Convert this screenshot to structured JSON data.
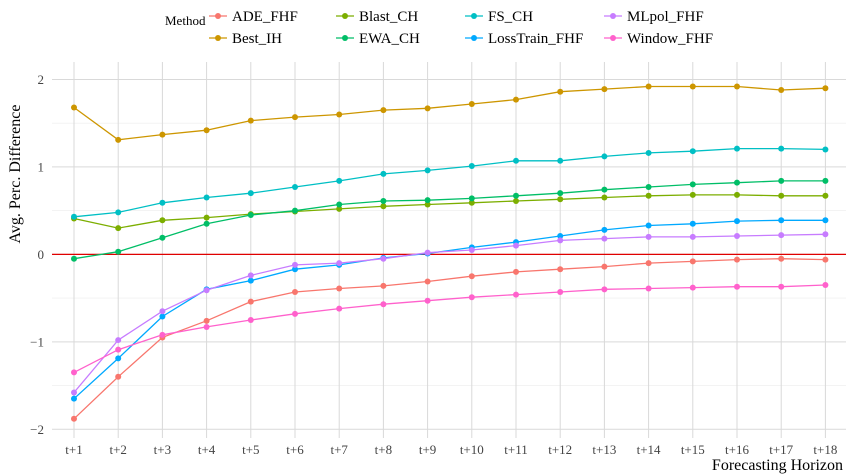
{
  "chart_data": {
    "type": "line",
    "xlabel": "Forecasting Horizon",
    "ylabel": "Avg. Perc. Difference",
    "ylim": [
      -2.1,
      2.2
    ],
    "yticks": [
      -2,
      -1,
      0,
      1,
      2
    ],
    "categories": [
      "t+1",
      "t+2",
      "t+3",
      "t+4",
      "t+5",
      "t+6",
      "t+7",
      "t+8",
      "t+9",
      "t+10",
      "t+11",
      "t+12",
      "t+13",
      "t+14",
      "t+15",
      "t+16",
      "t+17",
      "t+18"
    ],
    "reference_line": {
      "y": 0,
      "color": "#e00000"
    },
    "grid": true,
    "legend": {
      "title": "Method",
      "position": "top",
      "columns": [
        [
          "ADE_FHF",
          "Best_IH"
        ],
        [
          "Blast_CH",
          "EWA_CH"
        ],
        [
          "FS_CH",
          "LossTrain_FHF"
        ],
        [
          "MLpol_FHF",
          "Window_FHF"
        ]
      ]
    },
    "series": [
      {
        "name": "ADE_FHF",
        "color": "#F8766D",
        "values": [
          -1.88,
          -1.4,
          -0.95,
          -0.76,
          -0.54,
          -0.43,
          -0.39,
          -0.36,
          -0.31,
          -0.25,
          -0.2,
          -0.17,
          -0.14,
          -0.1,
          -0.08,
          -0.06,
          -0.05,
          -0.06
        ]
      },
      {
        "name": "Best_IH",
        "color": "#CD9600",
        "values": [
          1.68,
          1.31,
          1.37,
          1.42,
          1.53,
          1.57,
          1.6,
          1.65,
          1.67,
          1.72,
          1.77,
          1.86,
          1.89,
          1.92,
          1.92,
          1.92,
          1.88,
          1.9
        ]
      },
      {
        "name": "Blast_CH",
        "color": "#7CAE00",
        "values": [
          0.41,
          0.3,
          0.39,
          0.42,
          0.46,
          0.49,
          0.52,
          0.55,
          0.57,
          0.59,
          0.61,
          0.63,
          0.65,
          0.67,
          0.68,
          0.68,
          0.67,
          0.67
        ]
      },
      {
        "name": "EWA_CH",
        "color": "#00BE67",
        "values": [
          -0.05,
          0.03,
          0.19,
          0.35,
          0.45,
          0.5,
          0.57,
          0.61,
          0.62,
          0.64,
          0.67,
          0.7,
          0.74,
          0.77,
          0.8,
          0.82,
          0.84,
          0.84
        ]
      },
      {
        "name": "FS_CH",
        "color": "#00BFC4",
        "values": [
          0.43,
          0.48,
          0.59,
          0.65,
          0.7,
          0.77,
          0.84,
          0.92,
          0.96,
          1.01,
          1.07,
          1.07,
          1.12,
          1.16,
          1.18,
          1.21,
          1.21,
          1.2
        ]
      },
      {
        "name": "LossTrain_FHF",
        "color": "#00A9FF",
        "values": [
          -1.65,
          -1.19,
          -0.71,
          -0.4,
          -0.3,
          -0.17,
          -0.12,
          -0.04,
          0.01,
          0.08,
          0.14,
          0.21,
          0.28,
          0.33,
          0.35,
          0.38,
          0.39,
          0.39
        ]
      },
      {
        "name": "MLpol_FHF",
        "color": "#C77CFF",
        "values": [
          -1.58,
          -0.98,
          -0.65,
          -0.41,
          -0.24,
          -0.12,
          -0.1,
          -0.05,
          0.02,
          0.05,
          0.1,
          0.16,
          0.18,
          0.2,
          0.2,
          0.21,
          0.22,
          0.23
        ]
      },
      {
        "name": "Window_FHF",
        "color": "#FF61CC",
        "values": [
          -1.35,
          -1.09,
          -0.92,
          -0.83,
          -0.75,
          -0.68,
          -0.62,
          -0.57,
          -0.53,
          -0.49,
          -0.46,
          -0.43,
          -0.4,
          -0.39,
          -0.38,
          -0.37,
          -0.37,
          -0.35
        ]
      }
    ]
  }
}
